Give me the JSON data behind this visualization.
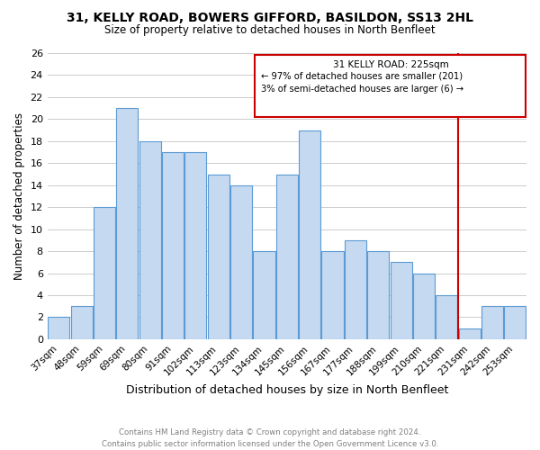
{
  "title": "31, KELLY ROAD, BOWERS GIFFORD, BASILDON, SS13 2HL",
  "subtitle": "Size of property relative to detached houses in North Benfleet",
  "xlabel": "Distribution of detached houses by size in North Benfleet",
  "ylabel": "Number of detached properties",
  "categories": [
    "37sqm",
    "48sqm",
    "59sqm",
    "69sqm",
    "80sqm",
    "91sqm",
    "102sqm",
    "113sqm",
    "123sqm",
    "134sqm",
    "145sqm",
    "156sqm",
    "167sqm",
    "177sqm",
    "188sqm",
    "199sqm",
    "210sqm",
    "221sqm",
    "231sqm",
    "242sqm",
    "253sqm"
  ],
  "values": [
    2,
    3,
    12,
    21,
    18,
    17,
    17,
    15,
    14,
    8,
    15,
    19,
    8,
    9,
    8,
    7,
    6,
    4,
    1,
    3,
    3
  ],
  "bar_color": "#c5d9f0",
  "bar_edge_color": "#5b9bd5",
  "grid_color": "#cccccc",
  "vline_x_index": 17.5,
  "vline_color": "#cc0000",
  "box_color": "#cc0000",
  "annotation_title": "31 KELLY ROAD: 225sqm",
  "annotation_line1": "← 97% of detached houses are smaller (201)",
  "annotation_line2": "3% of semi-detached houses are larger (6) →",
  "footer_line1": "Contains HM Land Registry data © Crown copyright and database right 2024.",
  "footer_line2": "Contains public sector information licensed under the Open Government Licence v3.0.",
  "ylim": [
    0,
    26
  ],
  "yticks": [
    0,
    2,
    4,
    6,
    8,
    10,
    12,
    14,
    16,
    18,
    20,
    22,
    24,
    26
  ]
}
